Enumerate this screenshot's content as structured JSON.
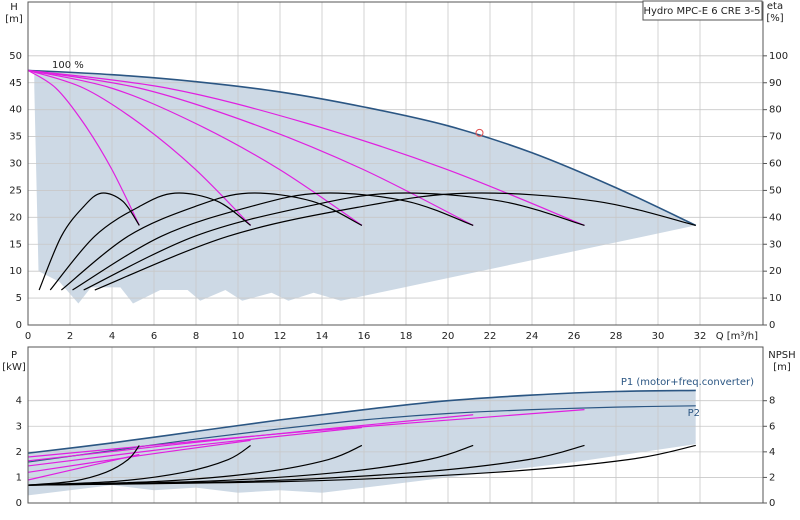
{
  "chart_data": [
    {
      "type": "line",
      "title": "Hydro MPC-E 6 CRE 3-5",
      "y_label": "H",
      "y_unit": "[m]",
      "y2_label": "eta",
      "y2_unit": "[%]",
      "x_label": "Q [m³/h]",
      "annotation": "100 %",
      "xlim": [
        0,
        35
      ],
      "ylim": [
        0,
        60
      ],
      "y2lim": [
        0,
        120
      ],
      "xticks": [
        0,
        2,
        4,
        6,
        8,
        10,
        12,
        14,
        16,
        18,
        20,
        22,
        24,
        26,
        28,
        30,
        32
      ],
      "yticks": [
        0,
        5,
        10,
        15,
        20,
        25,
        30,
        35,
        40,
        45,
        50
      ],
      "y2ticks": [
        0,
        10,
        20,
        30,
        40,
        50,
        60,
        70,
        80,
        90,
        100
      ],
      "grid": true,
      "shading": {
        "color": "#cdd9e5",
        "x": [
          0.3,
          0.5,
          1.5,
          2.4,
          3,
          4.4,
          5,
          6.3,
          7.6,
          8.2,
          9.4,
          10.2,
          11.6,
          12.4,
          13.6,
          14.9,
          31.8
        ],
        "values": [
          44,
          10,
          8,
          4,
          7,
          7,
          4,
          6.5,
          6.5,
          4.5,
          6.5,
          4.5,
          6,
          4.5,
          6,
          4.5,
          18.5
        ]
      },
      "duty_point": {
        "x": 21.5,
        "value": 35.7,
        "color": "#e05050"
      },
      "series": [
        {
          "color": "#2b5683",
          "x": [
            0,
            4,
            8,
            12,
            16,
            20,
            24,
            28,
            31.8
          ],
          "values": [
            47.3,
            46.5,
            45.2,
            43.3,
            40.5,
            37,
            32,
            25.5,
            18.5
          ]
        },
        {
          "color": "#e020e0",
          "x": [
            0,
            1.33,
            2.65,
            3.98,
            5.3
          ],
          "values": [
            47.3,
            44,
            37.5,
            29,
            18.5
          ]
        },
        {
          "color": "#e020e0",
          "x": [
            0,
            2.65,
            5.3,
            7.95,
            10.6
          ],
          "values": [
            47.3,
            44,
            37.5,
            29,
            18.5
          ]
        },
        {
          "color": "#e020e0",
          "x": [
            0,
            3.98,
            7.95,
            11.93,
            15.9
          ],
          "values": [
            47.3,
            44,
            37.5,
            29,
            18.5
          ]
        },
        {
          "color": "#e020e0",
          "x": [
            0,
            5.3,
            10.6,
            15.9,
            21.2
          ],
          "values": [
            47.3,
            44,
            37.5,
            29,
            18.5
          ]
        },
        {
          "color": "#e020e0",
          "x": [
            0,
            6.63,
            13.25,
            19.88,
            26.5
          ],
          "values": [
            47.3,
            44,
            37.5,
            29,
            18.5
          ]
        },
        {
          "color": "#000000",
          "axis": "y2",
          "x": [
            0.53,
            1.59,
            2.65,
            3.5,
            4.51,
            5.3
          ],
          "values": [
            13,
            33,
            44,
            49,
            46,
            37
          ]
        },
        {
          "color": "#000000",
          "axis": "y2",
          "x": [
            1.06,
            3.18,
            5.3,
            7,
            9.01,
            10.6
          ],
          "values": [
            13,
            33,
            44,
            49,
            46,
            37
          ]
        },
        {
          "color": "#000000",
          "axis": "y2",
          "x": [
            1.59,
            4.77,
            7.95,
            10.49,
            13.52,
            15.9
          ],
          "values": [
            13,
            33,
            44,
            49,
            46,
            37
          ]
        },
        {
          "color": "#000000",
          "axis": "y2",
          "x": [
            2.12,
            6.36,
            10.6,
            13.99,
            18.02,
            21.2
          ],
          "values": [
            13,
            33,
            44,
            49,
            46,
            37
          ]
        },
        {
          "color": "#000000",
          "axis": "y2",
          "x": [
            2.65,
            7.95,
            13.25,
            17.49,
            22.53,
            26.5
          ],
          "values": [
            13,
            33,
            44,
            49,
            46,
            37
          ]
        },
        {
          "color": "#000000",
          "axis": "y2",
          "x": [
            3.18,
            9.54,
            15.9,
            20.99,
            27.03,
            31.8
          ],
          "values": [
            13,
            33,
            44,
            49,
            46,
            37
          ]
        }
      ]
    },
    {
      "type": "line",
      "y_label": "P",
      "y_unit": "[kW]",
      "y2_label": "NPSH",
      "y2_unit": "[m]",
      "annotations": [
        "P1 (motor+freq.converter)",
        "P2"
      ],
      "xlim": [
        0,
        35
      ],
      "ylim": [
        0,
        6.1
      ],
      "y2lim": [
        0,
        12.2
      ],
      "yticks": [
        0,
        1,
        2,
        3,
        4
      ],
      "y2ticks": [
        0,
        2,
        4,
        6,
        8
      ],
      "grid": true,
      "shading": {
        "color": "#cdd9e5",
        "x": [
          0,
          2,
          4,
          6,
          8,
          10,
          12,
          14,
          20,
          26,
          31.8
        ],
        "values": [
          0.3,
          0.5,
          0.7,
          0.5,
          0.6,
          0.4,
          0.5,
          0.4,
          1.0,
          1.6,
          2.3
        ]
      },
      "series": [
        {
          "color": "#2b5683",
          "x": [
            0,
            4,
            8,
            12,
            16,
            20,
            24,
            28,
            31.8
          ],
          "values": [
            1.95,
            2.35,
            2.8,
            3.25,
            3.65,
            4.0,
            4.22,
            4.36,
            4.4
          ]
        },
        {
          "color": "#2b5683",
          "x": [
            0,
            4,
            8,
            12,
            16,
            20,
            24,
            28,
            31.8
          ],
          "values": [
            1.6,
            2.05,
            2.5,
            2.9,
            3.25,
            3.5,
            3.65,
            3.75,
            3.8
          ]
        },
        {
          "color": "#e020e0",
          "x": [
            0,
            2.65,
            5.3
          ],
          "values": [
            0.9,
            1.4,
            1.9
          ]
        },
        {
          "color": "#e020e0",
          "x": [
            0,
            5.3,
            10.6
          ],
          "values": [
            1.2,
            1.85,
            2.45
          ]
        },
        {
          "color": "#e020e0",
          "x": [
            0,
            7.95,
            15.9
          ],
          "values": [
            1.45,
            2.25,
            2.95
          ]
        },
        {
          "color": "#e020e0",
          "x": [
            0,
            10.6,
            21.2
          ],
          "values": [
            1.65,
            2.6,
            3.45
          ]
        },
        {
          "color": "#e020e0",
          "x": [
            0,
            13.25,
            26.5
          ],
          "values": [
            1.8,
            2.8,
            3.65
          ]
        },
        {
          "color": "#000000",
          "axis": "y2",
          "x": [
            0,
            2.12,
            3.71,
            4.77,
            5.3
          ],
          "values": [
            1.4,
            1.7,
            2.4,
            3.4,
            4.5
          ]
        },
        {
          "color": "#000000",
          "axis": "y2",
          "x": [
            0,
            4.24,
            7.42,
            9.54,
            10.6
          ],
          "values": [
            1.4,
            1.7,
            2.4,
            3.4,
            4.5
          ]
        },
        {
          "color": "#000000",
          "axis": "y2",
          "x": [
            0,
            6.36,
            11.13,
            14.31,
            15.9
          ],
          "values": [
            1.4,
            1.7,
            2.4,
            3.4,
            4.5
          ]
        },
        {
          "color": "#000000",
          "axis": "y2",
          "x": [
            0,
            8.48,
            14.84,
            19.08,
            21.2
          ],
          "values": [
            1.4,
            1.7,
            2.4,
            3.4,
            4.5
          ]
        },
        {
          "color": "#000000",
          "axis": "y2",
          "x": [
            0,
            10.6,
            18.55,
            23.85,
            26.5
          ],
          "values": [
            1.4,
            1.7,
            2.4,
            3.4,
            4.5
          ]
        },
        {
          "color": "#000000",
          "axis": "y2",
          "x": [
            0,
            12.72,
            22.26,
            28.62,
            31.8
          ],
          "values": [
            1.4,
            1.7,
            2.4,
            3.4,
            4.5
          ]
        }
      ]
    }
  ]
}
